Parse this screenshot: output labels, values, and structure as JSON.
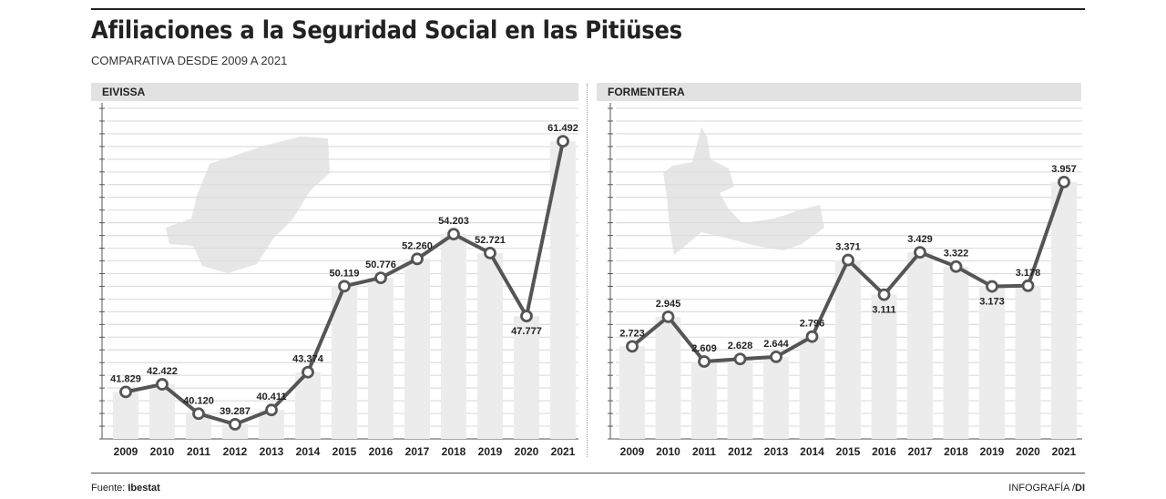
{
  "title": "Afiliaciones a la Seguridad Social en las Pitiüses",
  "subtitle": "COMPARATIVA DESDE 2009 A 2021",
  "footer": {
    "source_label": "Fuente:",
    "source": "Ibestat",
    "credit": "INFOGRAFÍA /",
    "credit_brand": "DI"
  },
  "colors": {
    "line": "#555555",
    "bar": "#ececec",
    "grid": "#dddddd",
    "header_bg": "#e2e2e2",
    "map": "#e6e6e6"
  },
  "chart_data": [
    {
      "type": "bar+line",
      "title": "EIVISSA",
      "categories": [
        "2009",
        "2010",
        "2011",
        "2012",
        "2013",
        "2014",
        "2015",
        "2016",
        "2017",
        "2018",
        "2019",
        "2020",
        "2021"
      ],
      "values": [
        41829,
        42422,
        40120,
        39287,
        40411,
        43374,
        50119,
        50776,
        52260,
        54203,
        52721,
        47777,
        61492
      ],
      "labels": [
        "41.829",
        "42.422",
        "40.120",
        "39.287",
        "40.411",
        "43.374",
        "50.119",
        "50.776",
        "52.260",
        "54.203",
        "52.721",
        "47.777",
        "61.492"
      ],
      "ylim": [
        38140,
        64070
      ],
      "grid": true,
      "background_icon": "ibiza-island-map"
    },
    {
      "type": "bar+line",
      "title": "FORMENTERA",
      "categories": [
        "2009",
        "2010",
        "2011",
        "2012",
        "2013",
        "2014",
        "2015",
        "2016",
        "2017",
        "2018",
        "2019",
        "2020",
        "2021"
      ],
      "values": [
        2723,
        2945,
        2609,
        2628,
        2644,
        2796,
        3371,
        3111,
        3429,
        3322,
        3173,
        3178,
        3957
      ],
      "labels": [
        "2.723",
        "2.945",
        "2.609",
        "2.628",
        "2.644",
        "2.796",
        "3.371",
        "3.111",
        "3.429",
        "3.322",
        "3.173",
        "3.178",
        "3.957"
      ],
      "ylim": [
        2028,
        4510
      ],
      "grid": true,
      "background_icon": "formentera-island-map"
    }
  ]
}
